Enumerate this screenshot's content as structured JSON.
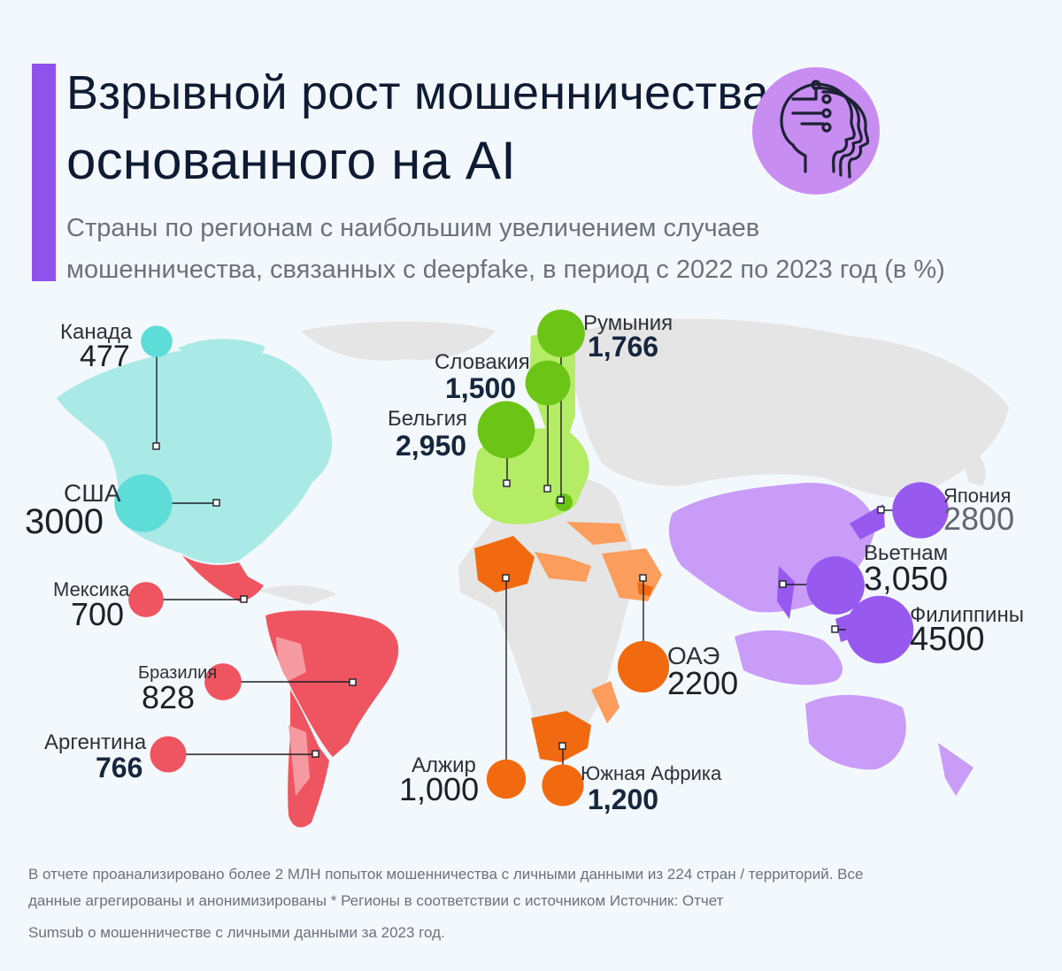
{
  "title": {
    "line1": "Взрывной рост мошенничества,",
    "line2": "основанного на AI"
  },
  "subtitle": {
    "line1": "Страны по регионам с наибольшим увеличением случаев",
    "line2": "мошенничества, связанных с deepfake, в период с 2022 по 2023 год (в %)"
  },
  "badge_icon": "ai-head-circuit-icon",
  "colors": {
    "accent": "#8f53ec",
    "north_america": "#5ddcd8",
    "latin_america": "#ef5560",
    "europe": "#6cc417",
    "mena_africa": "#f26a0f",
    "asia_pacific": "#9859ef",
    "badge": "#c88df0"
  },
  "countries": [
    {
      "name": "Канада",
      "value": "477",
      "region": "north_america",
      "increase_pct": 477
    },
    {
      "name": "США",
      "value": "3000",
      "region": "north_america",
      "increase_pct": 3000
    },
    {
      "name": "Мексика",
      "value": "700",
      "region": "latin_america",
      "increase_pct": 700
    },
    {
      "name": "Бразилия",
      "value": "828",
      "region": "latin_america",
      "increase_pct": 828
    },
    {
      "name": "Аргентина",
      "value": "766",
      "region": "latin_america",
      "increase_pct": 766
    },
    {
      "name": "Румыния",
      "value": "1,766",
      "region": "europe",
      "increase_pct": 1766
    },
    {
      "name": "Словакия",
      "value": "1,500",
      "region": "europe",
      "increase_pct": 1500
    },
    {
      "name": "Бельгия",
      "value": "2,950",
      "region": "europe",
      "increase_pct": 2950
    },
    {
      "name": "Алжир",
      "value": "1,000",
      "region": "mena_africa",
      "increase_pct": 1000
    },
    {
      "name": "ОАЭ",
      "value": "2200",
      "region": "mena_africa",
      "increase_pct": 2200
    },
    {
      "name": "Южная Африка",
      "value": "1,200",
      "region": "mena_africa",
      "increase_pct": 1200
    },
    {
      "name": "Япония",
      "value": "2800",
      "region": "asia_pacific",
      "increase_pct": 2800
    },
    {
      "name": "Вьетнам",
      "value": "3,050",
      "region": "asia_pacific",
      "increase_pct": 3050
    },
    {
      "name": "Филиппины",
      "value": "4500",
      "region": "asia_pacific",
      "increase_pct": 4500
    }
  ],
  "footnote": {
    "line1": "В отчете проанализировано более 2 МЛН попыток мошенничества с личными данными из 224 стран / территорий. Все",
    "line2": "данные агрегированы и анонимизированы * Регионы в соответствии с источником Источник: Отчет",
    "line3": "Sumsub о мошенничестве с личными данными за 2023 год."
  }
}
